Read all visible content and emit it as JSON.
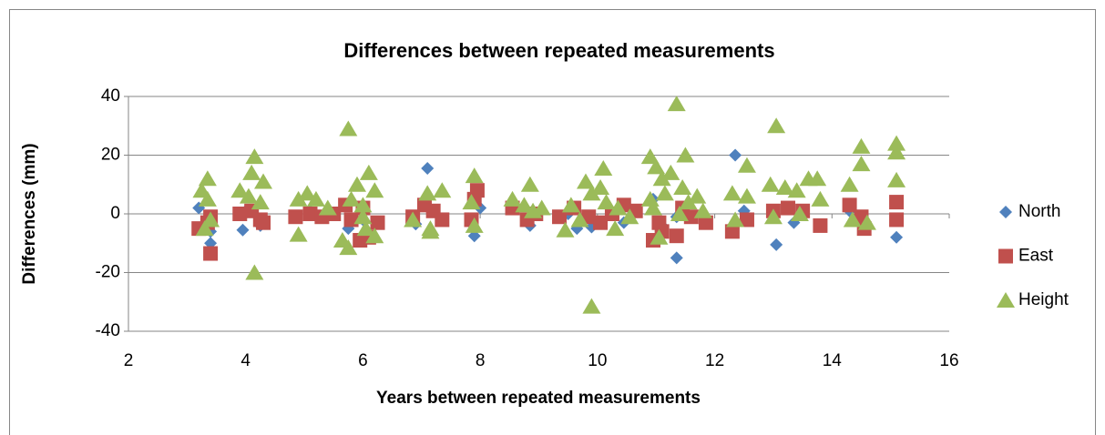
{
  "chart_data": {
    "type": "scatter",
    "title": "Differences between repeated measurements",
    "x_label": "Years between repeated measurements",
    "y_label": "Differences (mm)",
    "xlim": [
      2,
      16
    ],
    "xticks": [
      2,
      4,
      6,
      8,
      10,
      12,
      14,
      16
    ],
    "ylim": [
      -40,
      40
    ],
    "yticks": [
      -40,
      -20,
      0,
      20,
      40
    ],
    "grid": true,
    "legend": "right",
    "series": [
      {
        "name": "North",
        "color": "#4f81bd",
        "marker": "diamond",
        "x": [
          7.1,
          12.35,
          11.35,
          13.05,
          15.1,
          7.9,
          3.4,
          3.4,
          3.95,
          4.25,
          5.75,
          8.85,
          9.65,
          9.9,
          6.9,
          10.45,
          13.35,
          11.1,
          11.35,
          10.95,
          4.0,
          5.1,
          6.0,
          8.0,
          9.5,
          12.5,
          14.3,
          3.2
        ],
        "values": [
          15.5,
          20,
          -15,
          -10.5,
          -8,
          -7.5,
          -10,
          -6,
          -5.5,
          -4,
          -5,
          -4,
          -5,
          -4.5,
          -3.5,
          -3,
          -3,
          -4,
          -1,
          5,
          1,
          1,
          -2,
          2,
          0,
          1,
          1,
          2
        ]
      },
      {
        "name": "East",
        "color": "#c0504d",
        "marker": "square",
        "x": [
          3.4,
          3.2,
          3.35,
          3.4,
          3.9,
          4.1,
          4.25,
          4.3,
          4.85,
          5.1,
          5.3,
          5.5,
          5.7,
          5.8,
          5.95,
          6.1,
          6.25,
          6.0,
          6.85,
          7.05,
          7.2,
          7.35,
          7.85,
          7.9,
          7.95,
          8.55,
          8.8,
          8.95,
          9.35,
          9.6,
          9.85,
          10.05,
          10.25,
          10.45,
          10.65,
          10.95,
          11.1,
          11.35,
          11.45,
          11.6,
          11.85,
          12.3,
          12.55,
          13.0,
          13.25,
          13.5,
          13.8,
          14.3,
          14.5,
          14.55,
          15.1,
          15.1,
          11.05
        ],
        "values": [
          -13.5,
          -5,
          -3,
          -1,
          0,
          1,
          -2,
          -3,
          -1,
          0,
          -1,
          0,
          3,
          -2,
          -9,
          -8,
          -3,
          2,
          -1,
          3,
          1,
          -2,
          -2,
          5,
          8,
          2,
          -2,
          0,
          -1,
          2,
          -1,
          -3,
          0,
          3,
          1,
          -9,
          -6,
          -7.5,
          2,
          -1,
          -3,
          -6,
          -2,
          1,
          2,
          1,
          -4,
          3,
          -1,
          -5,
          4,
          -2,
          -3
        ]
      },
      {
        "name": "Height",
        "color": "#9bbb59",
        "marker": "triangle",
        "x": [
          5.75,
          11.35,
          13.05,
          4.15,
          4.15,
          9.9,
          11.5,
          15.1,
          14.5,
          12.55,
          5.75,
          6.1,
          10.1,
          7.35,
          7.9,
          8.85,
          10.9,
          11.0,
          11.25,
          9.8,
          14.3,
          13.6,
          13.75,
          15.1,
          3.35,
          3.25,
          3.35,
          3.3,
          3.4,
          3.9,
          4.1,
          4.3,
          4.05,
          4.25,
          4.9,
          4.9,
          5.05,
          5.2,
          5.4,
          5.65,
          5.8,
          5.9,
          6.0,
          6.05,
          6.2,
          6.2,
          6.0,
          6.85,
          7.1,
          7.15,
          7.15,
          7.85,
          7.9,
          8.55,
          8.75,
          8.9,
          9.05,
          9.45,
          9.55,
          9.7,
          9.9,
          10.05,
          10.15,
          10.3,
          10.35,
          10.55,
          10.9,
          11.05,
          11.1,
          11.15,
          11.45,
          11.55,
          11.7,
          11.8,
          12.3,
          12.35,
          12.55,
          12.95,
          13.0,
          13.2,
          13.4,
          13.45,
          13.8,
          14.35,
          14.5,
          14.6,
          15.1,
          11.4,
          10.95
        ],
        "values": [
          29,
          37.5,
          30,
          19.5,
          -20,
          -31.5,
          20,
          24,
          23,
          16.5,
          -11.5,
          14,
          15.5,
          8,
          13,
          10,
          19.5,
          16,
          14,
          11,
          10,
          12,
          12,
          11.5,
          12,
          8,
          5,
          -5,
          -2,
          8,
          14,
          11,
          6,
          4,
          5,
          -7,
          7,
          5,
          2,
          -9,
          5,
          10,
          3,
          -5,
          8,
          -7.5,
          -1,
          -2,
          7,
          -5,
          -6,
          4,
          -4,
          5,
          3,
          1,
          2,
          -5.5,
          3,
          -2,
          7,
          9,
          4,
          -5,
          2,
          -1,
          5,
          -8,
          12,
          7,
          9,
          4,
          6,
          1,
          7,
          -2,
          6,
          10,
          -1,
          9,
          8,
          0,
          5,
          -2,
          17,
          -3,
          21,
          0,
          2
        ]
      }
    ]
  }
}
